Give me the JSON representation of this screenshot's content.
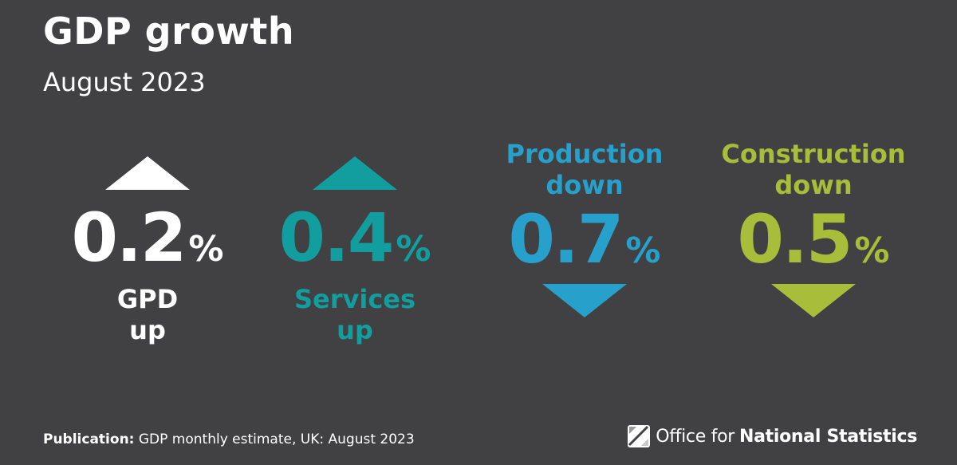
{
  "title": "GDP growth",
  "subtitle": "August 2023",
  "stats": [
    {
      "value": "0.2",
      "unit": "%",
      "label_line1": "GPD",
      "label_line2": "up",
      "direction": "up",
      "color": "#ffffff"
    },
    {
      "value": "0.4",
      "unit": "%",
      "label_line1": "Services",
      "label_line2": "up",
      "direction": "up",
      "color": "#129e9e"
    },
    {
      "value": "0.7",
      "unit": "%",
      "label_line1": "Production",
      "label_line2": "down",
      "direction": "down",
      "color": "#27a0cc"
    },
    {
      "value": "0.5",
      "unit": "%",
      "label_line1": "Construction",
      "label_line2": "down",
      "direction": "down",
      "color": "#a8bd3a"
    }
  ],
  "footer": {
    "prefix": "Publication:",
    "text": "GDP monthly estimate, UK: August 2023"
  },
  "logo": {
    "text_regular": "Office for",
    "text_bold": "National Statistics"
  },
  "icons": {
    "up_arrow": "triangle-up-icon",
    "down_arrow": "triangle-down-icon",
    "logo_mark": "ons-logo-icon"
  }
}
